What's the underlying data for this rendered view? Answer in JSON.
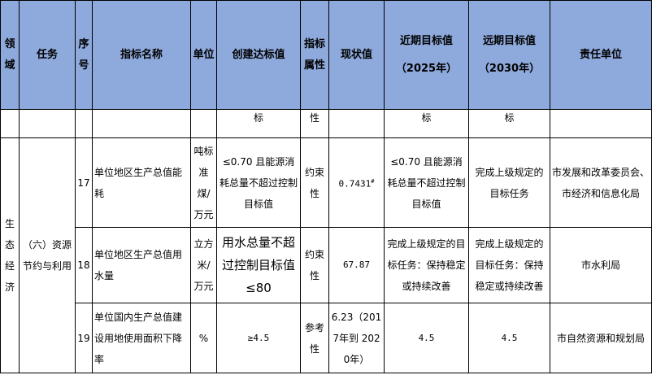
{
  "header": {
    "domain": "领域",
    "task": "任务",
    "seq": "序号",
    "indicator": "指标名称",
    "unit": "单位",
    "target": "创建达标值",
    "attribute": "指标属性",
    "current": "现状值",
    "near_term": "近期目标值",
    "near_term_year": "（2025年）",
    "long_term": "远期目标值",
    "long_term_year": "（2030年）",
    "responsible": "责任单位"
  },
  "continuation_row": {
    "target": "标",
    "attribute": "性",
    "near_term": "标",
    "long_term": "标"
  },
  "group": {
    "domain": "生态经济",
    "task": "（六）资源节约与利用"
  },
  "rows": [
    {
      "seq": "17",
      "indicator": "单位地区生产总值能耗",
      "unit": "吨标准煤/万元",
      "target": "≤0.70 且能源消耗总量不超过控制目标值",
      "attribute": "约束性",
      "current": "0.7431",
      "current_note": "#",
      "near_term": "≤0.70 且能源消耗总量不超过控制目标值",
      "long_term": "完成上级规定的目标任务",
      "responsible": "市发展和改革委员会、市经济和信息化局"
    },
    {
      "seq": "18",
      "indicator": "单位地区生产总值用水量",
      "unit": "立方米/万元",
      "target": "用水总量不超过控制目标值≤80",
      "attribute": "约束性",
      "current": "67.87",
      "near_term": "完成上级规定的目标任务：保持稳定或持续改善",
      "long_term": "完成上级规定的目标任务：保持稳定或持续改善",
      "responsible": "市水利局"
    },
    {
      "seq": "19",
      "indicator": "单位国内生产总值建设用地使用面积下降率",
      "unit": "%",
      "target": "≥4.5",
      "attribute": "参考性",
      "current": "6.23（2017年到 2020年）",
      "near_term": "4.5",
      "long_term": "4.5",
      "responsible": "市自然资源和规划局"
    }
  ],
  "colors": {
    "header_bg": "#8EA9DB",
    "border": "#000000"
  }
}
